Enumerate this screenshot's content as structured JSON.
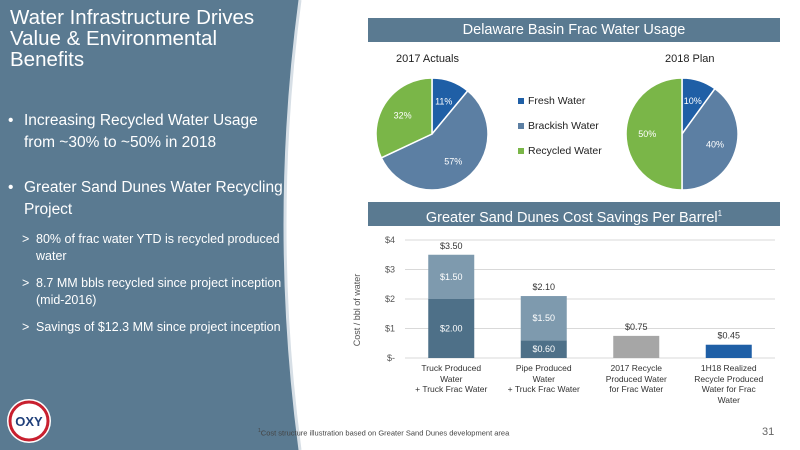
{
  "slide": {
    "title": "Water Infrastructure Drives Value & Environmental Benefits",
    "bullets": [
      "Increasing Recycled Water Usage from ~30% to ~50% in 2018",
      "Greater Sand Dunes Water Recycling Project"
    ],
    "subbullets": [
      "80% of frac water YTD is recycled produced water",
      "8.7 MM bbls recycled since project inception (mid-2016)",
      "Savings of $12.3 MM since project inception"
    ],
    "bullet_char": "•",
    "subbullet_char": ">",
    "logo_text": "OXY",
    "page_number": "31",
    "footnote": "Cost structure illustration based on Greater Sand Dunes development area",
    "footnote_marker": "1"
  },
  "colors": {
    "panel": "#5a7a91",
    "fresh": "#1f5fa6",
    "brackish": "#5c7fa3",
    "recycled": "#7ab648",
    "bar_dark": "#4e7088",
    "bar_mid": "#7e9aae",
    "bar_gray": "#a6a6a6",
    "bar_blue": "#1f5fa6"
  },
  "chart_data": [
    {
      "type": "pie",
      "title": "Delaware Basin Frac Water Usage",
      "pies": [
        {
          "name": "2017 Actuals",
          "slices": [
            {
              "label": "Fresh Water",
              "value": 11,
              "text": "11%"
            },
            {
              "label": "Brackish Water",
              "value": 57,
              "text": "57%"
            },
            {
              "label": "Recycled Water",
              "value": 32,
              "text": "32%"
            }
          ]
        },
        {
          "name": "2018 Plan",
          "slices": [
            {
              "label": "Fresh Water",
              "value": 10,
              "text": "10%"
            },
            {
              "label": "Brackish Water",
              "value": 40,
              "text": "40%"
            },
            {
              "label": "Recycled Water",
              "value": 50,
              "text": "50%"
            }
          ]
        }
      ],
      "legend": [
        "Fresh Water",
        "Brackish Water",
        "Recycled Water"
      ],
      "legend_placement": "center"
    },
    {
      "type": "bar",
      "stacked": true,
      "title": "Greater Sand Dunes Cost Savings Per Barrel",
      "title_superscript": "1",
      "ylabel": "Cost / bbl of water",
      "ylim": [
        0,
        4
      ],
      "yticks": [
        0,
        1,
        2,
        3,
        4
      ],
      "ytick_labels": [
        "$-",
        "$1",
        "$2",
        "$3",
        "$4"
      ],
      "categories": [
        [
          "Truck Produced",
          "Water",
          "+ Truck Frac Water"
        ],
        [
          "Pipe Produced",
          "Water",
          "+ Truck Frac Water"
        ],
        [
          "2017 Recycle",
          "Produced Water",
          "for Frac Water"
        ],
        [
          "1H18 Realized",
          "Recycle Produced",
          "Water for Frac",
          "Water"
        ]
      ],
      "bars": [
        {
          "segments": [
            {
              "value": 2.0,
              "label": "$2.00",
              "color": "#4e7088"
            },
            {
              "value": 1.5,
              "label": "$1.50",
              "color": "#7e9aae"
            }
          ],
          "total_label": "$3.50"
        },
        {
          "segments": [
            {
              "value": 0.6,
              "label": "$0.60",
              "color": "#4e7088"
            },
            {
              "value": 1.5,
              "label": "$1.50",
              "color": "#7e9aae"
            }
          ],
          "total_label": "$2.10"
        },
        {
          "segments": [
            {
              "value": 0.75,
              "label": "",
              "color": "#a6a6a6"
            }
          ],
          "total_label": "$0.75"
        },
        {
          "segments": [
            {
              "value": 0.45,
              "label": "",
              "color": "#1f5fa6"
            }
          ],
          "total_label": "$0.45"
        }
      ],
      "grid": true
    }
  ]
}
